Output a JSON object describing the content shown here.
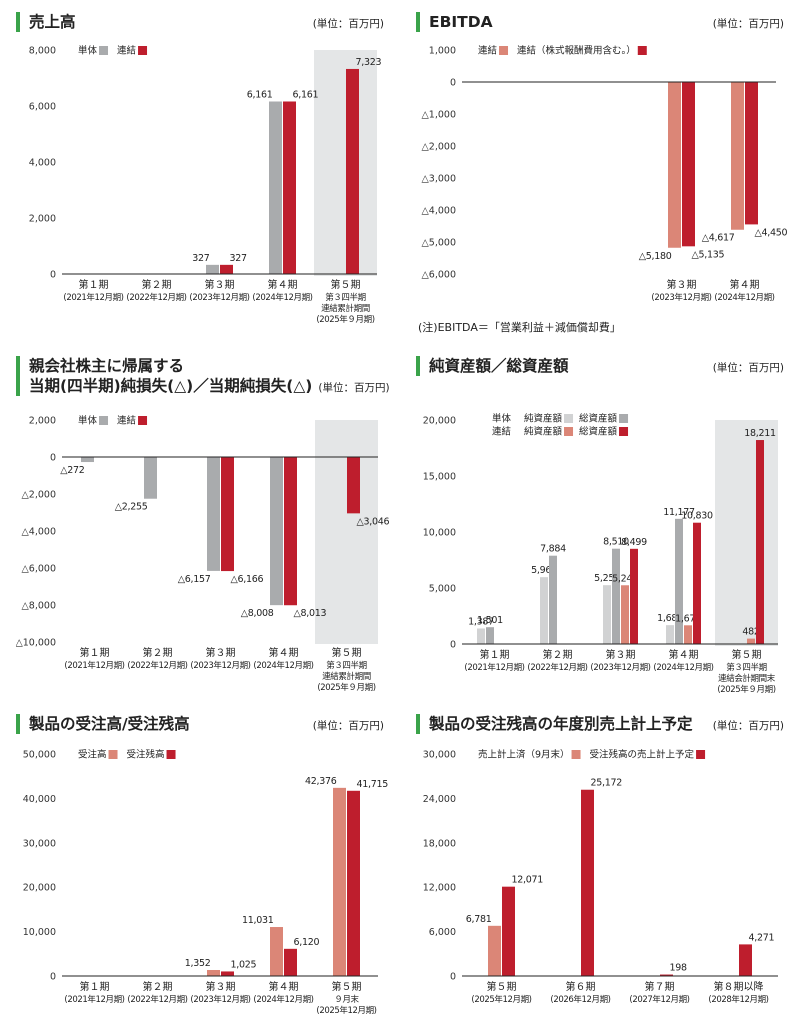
{
  "colors": {
    "gray": "#a9abad",
    "lightgray": "#d1d2d3",
    "red": "#be1e2d",
    "salmon": "#db8677",
    "band": "#e4e6e7",
    "green": "#3aa34a"
  },
  "chart_data": [
    {
      "id": "sales",
      "type": "bar",
      "title": "売上高",
      "unit": "(単位：百万円)",
      "categories": [
        {
          "label": "第１期",
          "sub": [
            "(2021年12月期)"
          ]
        },
        {
          "label": "第２期",
          "sub": [
            "(2022年12月期)"
          ]
        },
        {
          "label": "第３期",
          "sub": [
            "(2023年12月期)"
          ]
        },
        {
          "label": "第４期",
          "sub": [
            "(2024年12月期)"
          ]
        },
        {
          "label": "第５期",
          "sub": [
            "第３四半期",
            "連結累計期間",
            "(2025年９月期)"
          ]
        }
      ],
      "ylim": [
        0,
        8000
      ],
      "yticks": [
        {
          "v": 0,
          "t": "0"
        },
        {
          "v": 2000,
          "t": "2,000"
        },
        {
          "v": 4000,
          "t": "4,000"
        },
        {
          "v": 6000,
          "t": "6,000"
        },
        {
          "v": 8000,
          "t": "8,000"
        }
      ],
      "highlight": 4,
      "legend": [
        {
          "name": "単体",
          "color": "gray"
        },
        {
          "name": "連結",
          "color": "red"
        }
      ],
      "series": [
        {
          "name": "単体",
          "color": "gray",
          "values": [
            null,
            null,
            327,
            6161,
            null
          ],
          "labels": [
            "",
            "",
            "327",
            "6,161",
            ""
          ]
        },
        {
          "name": "連結",
          "color": "red",
          "values": [
            null,
            null,
            327,
            6161,
            7323
          ],
          "labels": [
            "",
            "",
            "327",
            "6,161",
            "7,323"
          ]
        }
      ]
    },
    {
      "id": "ebitda",
      "type": "bar",
      "title": "EBITDA",
      "unit": "(単位：百万円)",
      "categories": [
        {
          "label": "第３期",
          "sub": [
            "(2023年12月期)"
          ]
        },
        {
          "label": "第４期",
          "sub": [
            "(2024年12月期)"
          ]
        }
      ],
      "ylim": [
        -6000,
        1000
      ],
      "yticks": [
        {
          "v": 1000,
          "t": "1,000"
        },
        {
          "v": 0,
          "t": "0"
        },
        {
          "v": -1000,
          "t": "△1,000"
        },
        {
          "v": -2000,
          "t": "△2,000"
        },
        {
          "v": -3000,
          "t": "△3,000"
        },
        {
          "v": -4000,
          "t": "△4,000"
        },
        {
          "v": -5000,
          "t": "△5,000"
        },
        {
          "v": -6000,
          "t": "△6,000"
        }
      ],
      "legend": [
        {
          "name": "連結",
          "color": "salmon"
        },
        {
          "name": "連結（株式報酬費用含む。）",
          "color": "red"
        }
      ],
      "series": [
        {
          "name": "連結",
          "color": "salmon",
          "values": [
            -5180,
            -4617
          ],
          "labels": [
            "△5,180",
            "△4,617"
          ]
        },
        {
          "name": "連結（株式報酬費用含む。）",
          "color": "red",
          "values": [
            -5135,
            -4450
          ],
          "labels": [
            "△5,135",
            "△4,450"
          ]
        }
      ],
      "note": "(注)EBITDA＝「営業利益＋減価償却費」"
    },
    {
      "id": "netloss",
      "type": "bar",
      "title": "親会社株主に帰属する",
      "title2": "当期(四半期)純損失(△)／当期純損失(△)",
      "unit": "(単位：百万円)",
      "categories": [
        {
          "label": "第１期",
          "sub": [
            "(2021年12月期)"
          ]
        },
        {
          "label": "第２期",
          "sub": [
            "(2022年12月期)"
          ]
        },
        {
          "label": "第３期",
          "sub": [
            "(2023年12月期)"
          ]
        },
        {
          "label": "第４期",
          "sub": [
            "(2024年12月期)"
          ]
        },
        {
          "label": "第５期",
          "sub": [
            "第３四半期",
            "連結累計期間",
            "(2025年９月期)"
          ]
        }
      ],
      "ylim": [
        -10000,
        2000
      ],
      "yticks": [
        {
          "v": 2000,
          "t": "2,000"
        },
        {
          "v": 0,
          "t": "0"
        },
        {
          "v": -2000,
          "t": "△2,000"
        },
        {
          "v": -4000,
          "t": "△4,000"
        },
        {
          "v": -6000,
          "t": "△6,000"
        },
        {
          "v": -8000,
          "t": "△8,000"
        },
        {
          "v": -10000,
          "t": "△10,000"
        }
      ],
      "highlight": 4,
      "legend": [
        {
          "name": "単体",
          "color": "gray"
        },
        {
          "name": "連結",
          "color": "red"
        }
      ],
      "series": [
        {
          "name": "単体",
          "color": "gray",
          "values": [
            -272,
            -2255,
            -6157,
            -8008,
            null
          ],
          "labels": [
            "△272",
            "△2,255",
            "△6,157",
            "△8,008",
            ""
          ]
        },
        {
          "name": "連結",
          "color": "red",
          "values": [
            null,
            null,
            -6166,
            -8013,
            -3046
          ],
          "labels": [
            "",
            "",
            "△6,166",
            "△8,013",
            "△3,046"
          ]
        }
      ]
    },
    {
      "id": "assets",
      "type": "bar",
      "title": "純資産額／総資産額",
      "unit": "(単位：百万円)",
      "categories": [
        {
          "label": "第１期",
          "sub": [
            "(2021年12月期)"
          ]
        },
        {
          "label": "第２期",
          "sub": [
            "(2022年12月期)"
          ]
        },
        {
          "label": "第３期",
          "sub": [
            "(2023年12月期)"
          ]
        },
        {
          "label": "第４期",
          "sub": [
            "(2024年12月期)"
          ]
        },
        {
          "label": "第５期",
          "sub": [
            "第３四半期",
            "連結会計期間末",
            "(2025年９月期)"
          ]
        }
      ],
      "ylim": [
        0,
        20000
      ],
      "yticks": [
        {
          "v": 0,
          "t": "0"
        },
        {
          "v": 5000,
          "t": "5,000"
        },
        {
          "v": 10000,
          "t": "10,000"
        },
        {
          "v": 15000,
          "t": "15,000"
        },
        {
          "v": 20000,
          "t": "20,000"
        }
      ],
      "highlight": 4,
      "legend_rows": [
        {
          "head": "単体",
          "items": [
            {
              "name": "純資産額",
              "color": "lightgray"
            },
            {
              "name": "総資産額",
              "color": "gray"
            }
          ]
        },
        {
          "head": "連結",
          "items": [
            {
              "name": "純資産額",
              "color": "salmon"
            },
            {
              "name": "総資産額",
              "color": "red"
            }
          ]
        }
      ],
      "series": [
        {
          "name": "単体 純資産額",
          "color": "lightgray",
          "values": [
            1387,
            5967,
            5252,
            1682,
            null
          ],
          "labels": [
            "1,387",
            "5,967",
            "5,252",
            "1,682",
            ""
          ]
        },
        {
          "name": "単体 総資産額",
          "color": "gray",
          "values": [
            1501,
            7884,
            8510,
            11177,
            null
          ],
          "labels": [
            "1,501",
            "7,884",
            "8,510",
            "11,177",
            ""
          ]
        },
        {
          "name": "連結 純資産額",
          "color": "salmon",
          "values": [
            null,
            null,
            5244,
            1670,
            482
          ],
          "labels": [
            "",
            "",
            "5,244",
            "1,670",
            "482"
          ]
        },
        {
          "name": "連結 総資産額",
          "color": "red",
          "values": [
            null,
            null,
            8499,
            10830,
            18211
          ],
          "labels": [
            "",
            "",
            "8,499",
            "10,830",
            "18,211"
          ]
        }
      ]
    },
    {
      "id": "orders",
      "type": "bar",
      "title": "製品の受注高/受注残高",
      "unit": "(単位：百万円)",
      "categories": [
        {
          "label": "第１期",
          "sub": [
            "(2021年12月期)"
          ]
        },
        {
          "label": "第２期",
          "sub": [
            "(2022年12月期)"
          ]
        },
        {
          "label": "第３期",
          "sub": [
            "(2023年12月期)"
          ]
        },
        {
          "label": "第４期",
          "sub": [
            "(2024年12月期)"
          ]
        },
        {
          "label": "第５期",
          "sub": [
            "９月末",
            "(2025年12月期)"
          ]
        }
      ],
      "ylim": [
        0,
        50000
      ],
      "yticks": [
        {
          "v": 0,
          "t": "0"
        },
        {
          "v": 10000,
          "t": "10,000"
        },
        {
          "v": 20000,
          "t": "20,000"
        },
        {
          "v": 30000,
          "t": "30,000"
        },
        {
          "v": 40000,
          "t": "40,000"
        },
        {
          "v": 50000,
          "t": "50,000"
        }
      ],
      "legend": [
        {
          "name": "受注高",
          "color": "salmon"
        },
        {
          "name": "受注残高",
          "color": "red"
        }
      ],
      "series": [
        {
          "name": "受注高",
          "color": "salmon",
          "values": [
            null,
            null,
            1352,
            11031,
            42376
          ],
          "labels": [
            "",
            "",
            "1,352",
            "11,031",
            "42,376"
          ]
        },
        {
          "name": "受注残高",
          "color": "red",
          "values": [
            null,
            null,
            1025,
            6120,
            41715
          ],
          "labels": [
            "",
            "",
            "1,025",
            "6,120",
            "41,715"
          ]
        }
      ]
    },
    {
      "id": "backlog",
      "type": "bar",
      "title": "製品の受注残高の年度別売上計上予定",
      "unit": "(単位：百万円)",
      "categories": [
        {
          "label": "第５期",
          "sub": [
            "(2025年12月期)"
          ]
        },
        {
          "label": "第６期",
          "sub": [
            "(2026年12月期)"
          ]
        },
        {
          "label": "第７期",
          "sub": [
            "(2027年12月期)"
          ]
        },
        {
          "label": "第８期以降",
          "sub": [
            "(2028年12月期)"
          ]
        }
      ],
      "ylim": [
        0,
        30000
      ],
      "yticks": [
        {
          "v": 0,
          "t": "0"
        },
        {
          "v": 6000,
          "t": "6,000"
        },
        {
          "v": 12000,
          "t": "12,000"
        },
        {
          "v": 18000,
          "t": "18,000"
        },
        {
          "v": 24000,
          "t": "24,000"
        },
        {
          "v": 30000,
          "t": "30,000"
        }
      ],
      "legend": [
        {
          "name": "売上計上済（9月末）",
          "color": "salmon"
        },
        {
          "name": "受注残高の売上計上予定",
          "color": "red"
        }
      ],
      "series": [
        {
          "name": "売上計上済（9月末）",
          "color": "salmon",
          "values": [
            6781,
            null,
            null,
            null
          ],
          "labels": [
            "6,781",
            "",
            "",
            ""
          ]
        },
        {
          "name": "受注残高の売上計上予定",
          "color": "red",
          "values": [
            12071,
            25172,
            198,
            4271
          ],
          "labels": [
            "12,071",
            "25,172",
            "198",
            "4,271"
          ]
        }
      ]
    }
  ]
}
